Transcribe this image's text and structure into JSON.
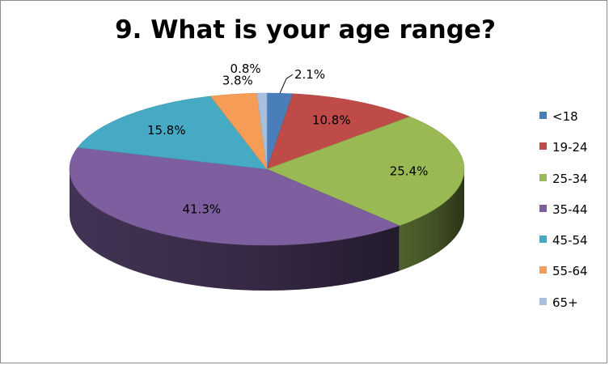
{
  "chart_data": {
    "type": "pie",
    "title": "9. What is your age range?",
    "categories": [
      "<18",
      "19-24",
      "25-34",
      "35-44",
      "45-54",
      "55-64",
      "65+"
    ],
    "values": [
      2.1,
      10.8,
      25.4,
      41.3,
      15.8,
      3.8,
      0.8
    ],
    "data_labels": [
      "2.1%",
      "10.8%",
      "25.4%",
      "41.3%",
      "15.8%",
      "3.8%",
      "0.8%"
    ],
    "colors": [
      "#4a7ebb",
      "#be4b48",
      "#98b954",
      "#7d5fa0",
      "#46aac5",
      "#f59d56",
      "#a7c0e0"
    ],
    "style": "3d",
    "legend_position": "right"
  }
}
